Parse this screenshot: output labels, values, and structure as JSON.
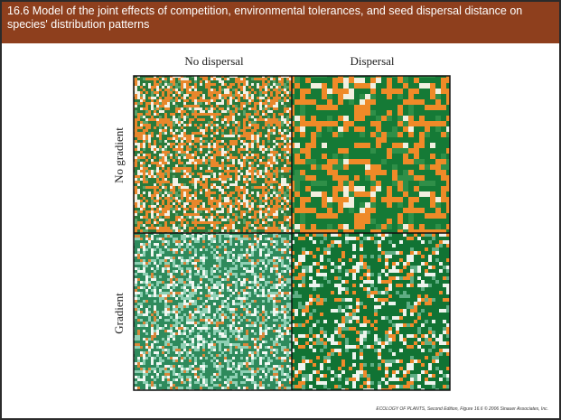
{
  "header": {
    "title": "16.6  Model of the joint effects of competition, environmental tolerances, and seed dispersal distance on species' distribution patterns"
  },
  "columns": [
    "No dispersal",
    "Dispersal"
  ],
  "rows": [
    "No gradient",
    "Gradient"
  ],
  "credit": "ECOLOGY OF PLANTS, Second Edition, Figure 16.6  © 2006 Sinauer Associates, Inc."
}
